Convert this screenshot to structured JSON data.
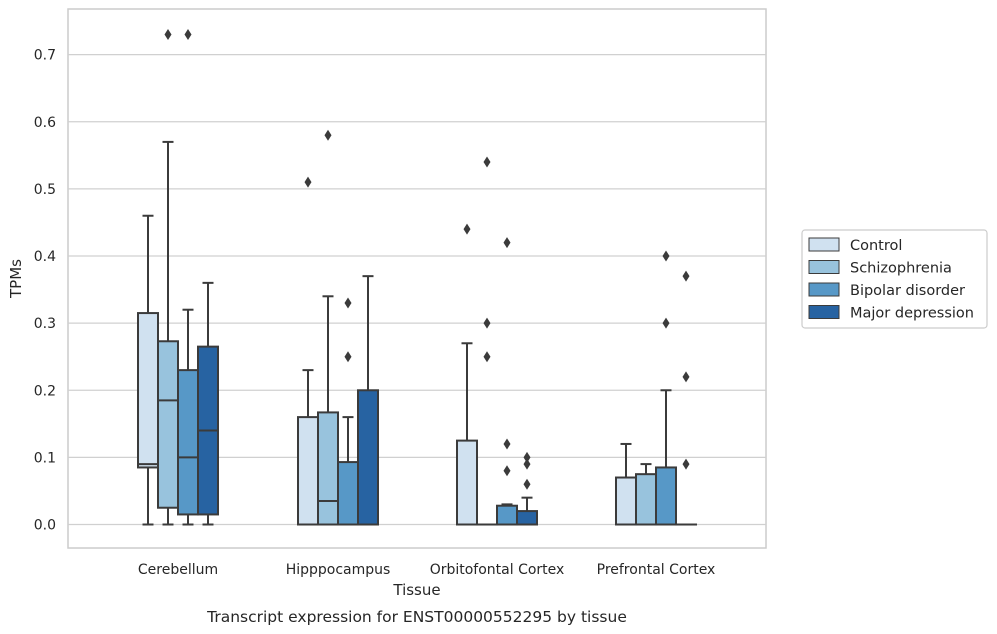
{
  "chart_data": {
    "type": "box",
    "xlabel": "Tissue",
    "ylabel": "TPMs",
    "caption": "Transcript expression for ENST00000552295 by tissue",
    "ylim": [
      -0.035,
      0.768
    ],
    "yticks": [
      0.0,
      0.1,
      0.2,
      0.3,
      0.4,
      0.5,
      0.6,
      0.7
    ],
    "ytick_labels": [
      "0.0",
      "0.1",
      "0.2",
      "0.3",
      "0.4",
      "0.5",
      "0.6",
      "0.7"
    ],
    "grid": "horizontal",
    "legend_position": "right",
    "categories": [
      "Cerebellum",
      "Hipppocampus",
      "Orbitofontal Cortex",
      "Prefrontal Cortex"
    ],
    "series": [
      {
        "name": "Control",
        "color": "#d0e1f0",
        "boxes": [
          {
            "whislo": 0.0,
            "q1": 0.085,
            "median": 0.09,
            "q3": 0.315,
            "whishi": 0.46,
            "fliers": []
          },
          {
            "whislo": 0.0,
            "q1": 0.0,
            "median": 0.0,
            "q3": 0.16,
            "whishi": 0.23,
            "fliers": [
              0.51
            ]
          },
          {
            "whislo": 0.0,
            "q1": 0.0,
            "median": 0.0,
            "q3": 0.125,
            "whishi": 0.27,
            "fliers": [
              0.44
            ]
          },
          {
            "whislo": 0.0,
            "q1": 0.0,
            "median": 0.0,
            "q3": 0.07,
            "whishi": 0.12,
            "fliers": []
          }
        ]
      },
      {
        "name": "Schizophrenia",
        "color": "#98c3dd",
        "boxes": [
          {
            "whislo": 0.0,
            "q1": 0.025,
            "median": 0.185,
            "q3": 0.273,
            "whishi": 0.57,
            "fliers": [
              0.73
            ]
          },
          {
            "whislo": 0.0,
            "q1": 0.0,
            "median": 0.035,
            "q3": 0.167,
            "whishi": 0.34,
            "fliers": [
              0.58
            ]
          },
          {
            "whislo": 0.0,
            "q1": 0.0,
            "median": 0.0,
            "q3": 0.0,
            "whishi": 0.0,
            "fliers": [
              0.54,
              0.3,
              0.25
            ]
          },
          {
            "whislo": 0.0,
            "q1": 0.0,
            "median": 0.0,
            "q3": 0.075,
            "whishi": 0.09,
            "fliers": []
          }
        ]
      },
      {
        "name": "Bipolar disorder",
        "color": "#5798c7",
        "boxes": [
          {
            "whislo": 0.0,
            "q1": 0.015,
            "median": 0.1,
            "q3": 0.23,
            "whishi": 0.32,
            "fliers": [
              0.73
            ]
          },
          {
            "whislo": 0.0,
            "q1": 0.0,
            "median": 0.0,
            "q3": 0.093,
            "whishi": 0.16,
            "fliers": [
              0.33,
              0.25
            ]
          },
          {
            "whislo": 0.0,
            "q1": 0.0,
            "median": 0.0,
            "q3": 0.028,
            "whishi": 0.03,
            "fliers": [
              0.42,
              0.12,
              0.08
            ]
          },
          {
            "whislo": 0.0,
            "q1": 0.0,
            "median": 0.0,
            "q3": 0.085,
            "whishi": 0.2,
            "fliers": [
              0.4,
              0.3
            ]
          }
        ]
      },
      {
        "name": "Major depression",
        "color": "#2763a2",
        "boxes": [
          {
            "whislo": 0.0,
            "q1": 0.015,
            "median": 0.14,
            "q3": 0.265,
            "whishi": 0.36,
            "fliers": []
          },
          {
            "whislo": 0.0,
            "q1": 0.0,
            "median": 0.0,
            "q3": 0.2,
            "whishi": 0.37,
            "fliers": []
          },
          {
            "whislo": 0.0,
            "q1": 0.0,
            "median": 0.0,
            "q3": 0.02,
            "whishi": 0.04,
            "fliers": [
              0.1,
              0.09,
              0.06
            ]
          },
          {
            "whislo": 0.0,
            "q1": 0.0,
            "median": 0.0,
            "q3": 0.0,
            "whishi": 0.0,
            "fliers": [
              0.37,
              0.22,
              0.09
            ]
          }
        ]
      }
    ]
  },
  "colors": {
    "edge": "#3b3b3b",
    "grid": "#d0d0d0",
    "frame": "#cccccc"
  }
}
